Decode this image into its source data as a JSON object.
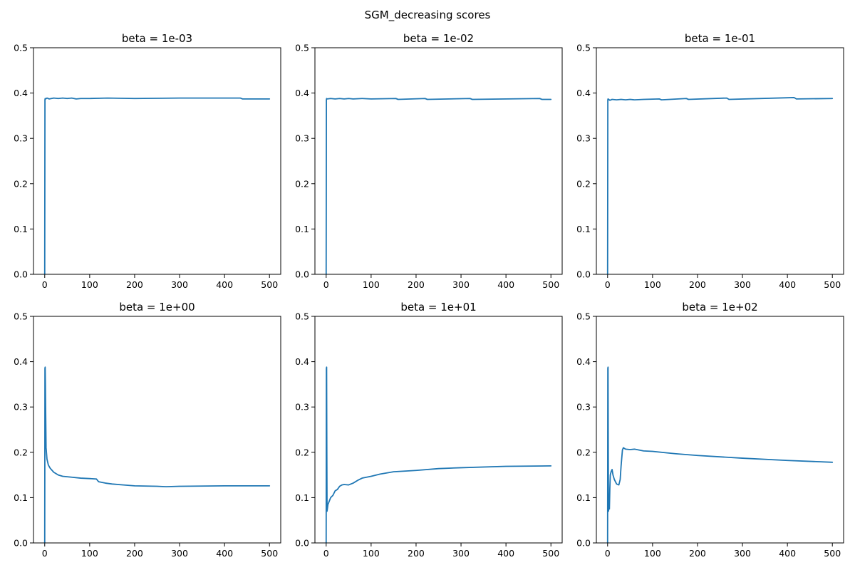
{
  "figure": {
    "suptitle": "SGM_decreasing scores"
  },
  "chart_data": [
    {
      "type": "line",
      "title": "beta = 1e-03",
      "xlim": [
        -25,
        525
      ],
      "ylim": [
        0,
        0.5
      ],
      "xticks": [
        0,
        100,
        200,
        300,
        400,
        500
      ],
      "yticks": [
        0.0,
        0.1,
        0.2,
        0.3,
        0.4,
        0.5
      ],
      "ytick_labels": [
        "0.0",
        "0.1",
        "0.2",
        "0.3",
        "0.4",
        "0.5"
      ],
      "grid": false,
      "series": [
        {
          "color": "#1f77b4",
          "x": [
            0,
            0.5,
            1,
            2,
            5,
            10,
            20,
            30,
            40,
            50,
            60,
            70,
            80,
            100,
            140,
            200,
            300,
            400,
            435,
            440,
            500
          ],
          "y": [
            0.0,
            0.385,
            0.388,
            0.387,
            0.389,
            0.387,
            0.389,
            0.388,
            0.389,
            0.388,
            0.389,
            0.387,
            0.388,
            0.388,
            0.389,
            0.388,
            0.389,
            0.389,
            0.389,
            0.387,
            0.387
          ]
        }
      ]
    },
    {
      "type": "line",
      "title": "beta = 1e-02",
      "xlim": [
        -25,
        525
      ],
      "ylim": [
        0,
        0.5
      ],
      "xticks": [
        0,
        100,
        200,
        300,
        400,
        500
      ],
      "yticks": [
        0.0,
        0.1,
        0.2,
        0.3,
        0.4,
        0.5
      ],
      "ytick_labels": [
        "0.0",
        "0.1",
        "0.2",
        "0.3",
        "0.4",
        "0.5"
      ],
      "grid": false,
      "series": [
        {
          "color": "#1f77b4",
          "x": [
            0,
            0.5,
            1,
            2,
            10,
            20,
            30,
            40,
            50,
            60,
            80,
            100,
            155,
            160,
            220,
            225,
            320,
            325,
            475,
            480,
            500
          ],
          "y": [
            0.0,
            0.385,
            0.388,
            0.387,
            0.388,
            0.387,
            0.388,
            0.387,
            0.388,
            0.387,
            0.388,
            0.387,
            0.388,
            0.386,
            0.388,
            0.386,
            0.388,
            0.386,
            0.388,
            0.386,
            0.386
          ]
        }
      ]
    },
    {
      "type": "line",
      "title": "beta = 1e-01",
      "xlim": [
        -25,
        525
      ],
      "ylim": [
        0,
        0.5
      ],
      "xticks": [
        0,
        100,
        200,
        300,
        400,
        500
      ],
      "yticks": [
        0.0,
        0.1,
        0.2,
        0.3,
        0.4,
        0.5
      ],
      "ytick_labels": [
        "0.0",
        "0.1",
        "0.2",
        "0.3",
        "0.4",
        "0.5"
      ],
      "grid": false,
      "series": [
        {
          "color": "#1f77b4",
          "x": [
            0,
            0.5,
            1,
            5,
            10,
            20,
            30,
            40,
            50,
            60,
            80,
            115,
            120,
            175,
            180,
            265,
            270,
            415,
            420,
            500
          ],
          "y": [
            0.0,
            0.385,
            0.387,
            0.384,
            0.386,
            0.385,
            0.386,
            0.385,
            0.386,
            0.385,
            0.386,
            0.387,
            0.385,
            0.388,
            0.386,
            0.389,
            0.386,
            0.39,
            0.387,
            0.388
          ]
        }
      ]
    },
    {
      "type": "line",
      "title": "beta = 1e+00",
      "xlim": [
        -25,
        525
      ],
      "ylim": [
        0,
        0.5
      ],
      "xticks": [
        0,
        100,
        200,
        300,
        400,
        500
      ],
      "yticks": [
        0.0,
        0.1,
        0.2,
        0.3,
        0.4,
        0.5
      ],
      "ytick_labels": [
        "0.0",
        "0.1",
        "0.2",
        "0.3",
        "0.4",
        "0.5"
      ],
      "grid": false,
      "series": [
        {
          "color": "#1f77b4",
          "x": [
            0,
            0.5,
            1,
            1.5,
            2,
            3,
            5,
            8,
            12,
            20,
            30,
            40,
            50,
            60,
            80,
            100,
            115,
            120,
            135,
            150,
            175,
            200,
            250,
            270,
            300,
            400,
            500
          ],
          "y": [
            0.0,
            0.385,
            0.388,
            0.35,
            0.3,
            0.21,
            0.185,
            0.172,
            0.165,
            0.156,
            0.15,
            0.147,
            0.146,
            0.145,
            0.143,
            0.142,
            0.141,
            0.135,
            0.132,
            0.13,
            0.128,
            0.126,
            0.125,
            0.124,
            0.125,
            0.126,
            0.126
          ]
        }
      ]
    },
    {
      "type": "line",
      "title": "beta = 1e+01",
      "xlim": [
        -25,
        525
      ],
      "ylim": [
        0,
        0.5
      ],
      "xticks": [
        0,
        100,
        200,
        300,
        400,
        500
      ],
      "yticks": [
        0.0,
        0.1,
        0.2,
        0.3,
        0.4,
        0.5
      ],
      "ytick_labels": [
        "0.0",
        "0.1",
        "0.2",
        "0.3",
        "0.4",
        "0.5"
      ],
      "grid": false,
      "series": [
        {
          "color": "#1f77b4",
          "x": [
            0,
            0.5,
            1,
            1.5,
            2,
            4,
            6,
            10,
            15,
            20,
            25,
            30,
            35,
            40,
            50,
            60,
            70,
            80,
            100,
            120,
            150,
            200,
            250,
            300,
            400,
            500
          ],
          "y": [
            0.0,
            0.385,
            0.388,
            0.2,
            0.07,
            0.085,
            0.09,
            0.1,
            0.105,
            0.115,
            0.118,
            0.125,
            0.128,
            0.129,
            0.128,
            0.132,
            0.138,
            0.143,
            0.147,
            0.152,
            0.157,
            0.16,
            0.164,
            0.166,
            0.169,
            0.17
          ]
        }
      ]
    },
    {
      "type": "line",
      "title": "beta = 1e+02",
      "xlim": [
        -25,
        525
      ],
      "ylim": [
        0,
        0.5
      ],
      "xticks": [
        0,
        100,
        200,
        300,
        400,
        500
      ],
      "yticks": [
        0.0,
        0.1,
        0.2,
        0.3,
        0.4,
        0.5
      ],
      "ytick_labels": [
        "0.0",
        "0.1",
        "0.2",
        "0.3",
        "0.4",
        "0.5"
      ],
      "grid": false,
      "series": [
        {
          "color": "#1f77b4",
          "x": [
            0,
            0.5,
            1,
            1.5,
            2,
            3,
            4,
            5,
            6,
            8,
            10,
            12,
            15,
            20,
            25,
            28,
            30,
            33,
            35,
            40,
            50,
            60,
            80,
            100,
            150,
            200,
            300,
            400,
            500
          ],
          "y": [
            0.0,
            0.385,
            0.388,
            0.2,
            0.07,
            0.08,
            0.075,
            0.12,
            0.15,
            0.158,
            0.162,
            0.15,
            0.14,
            0.13,
            0.128,
            0.14,
            0.17,
            0.205,
            0.21,
            0.207,
            0.206,
            0.207,
            0.203,
            0.202,
            0.197,
            0.193,
            0.187,
            0.182,
            0.178
          ]
        }
      ]
    }
  ]
}
